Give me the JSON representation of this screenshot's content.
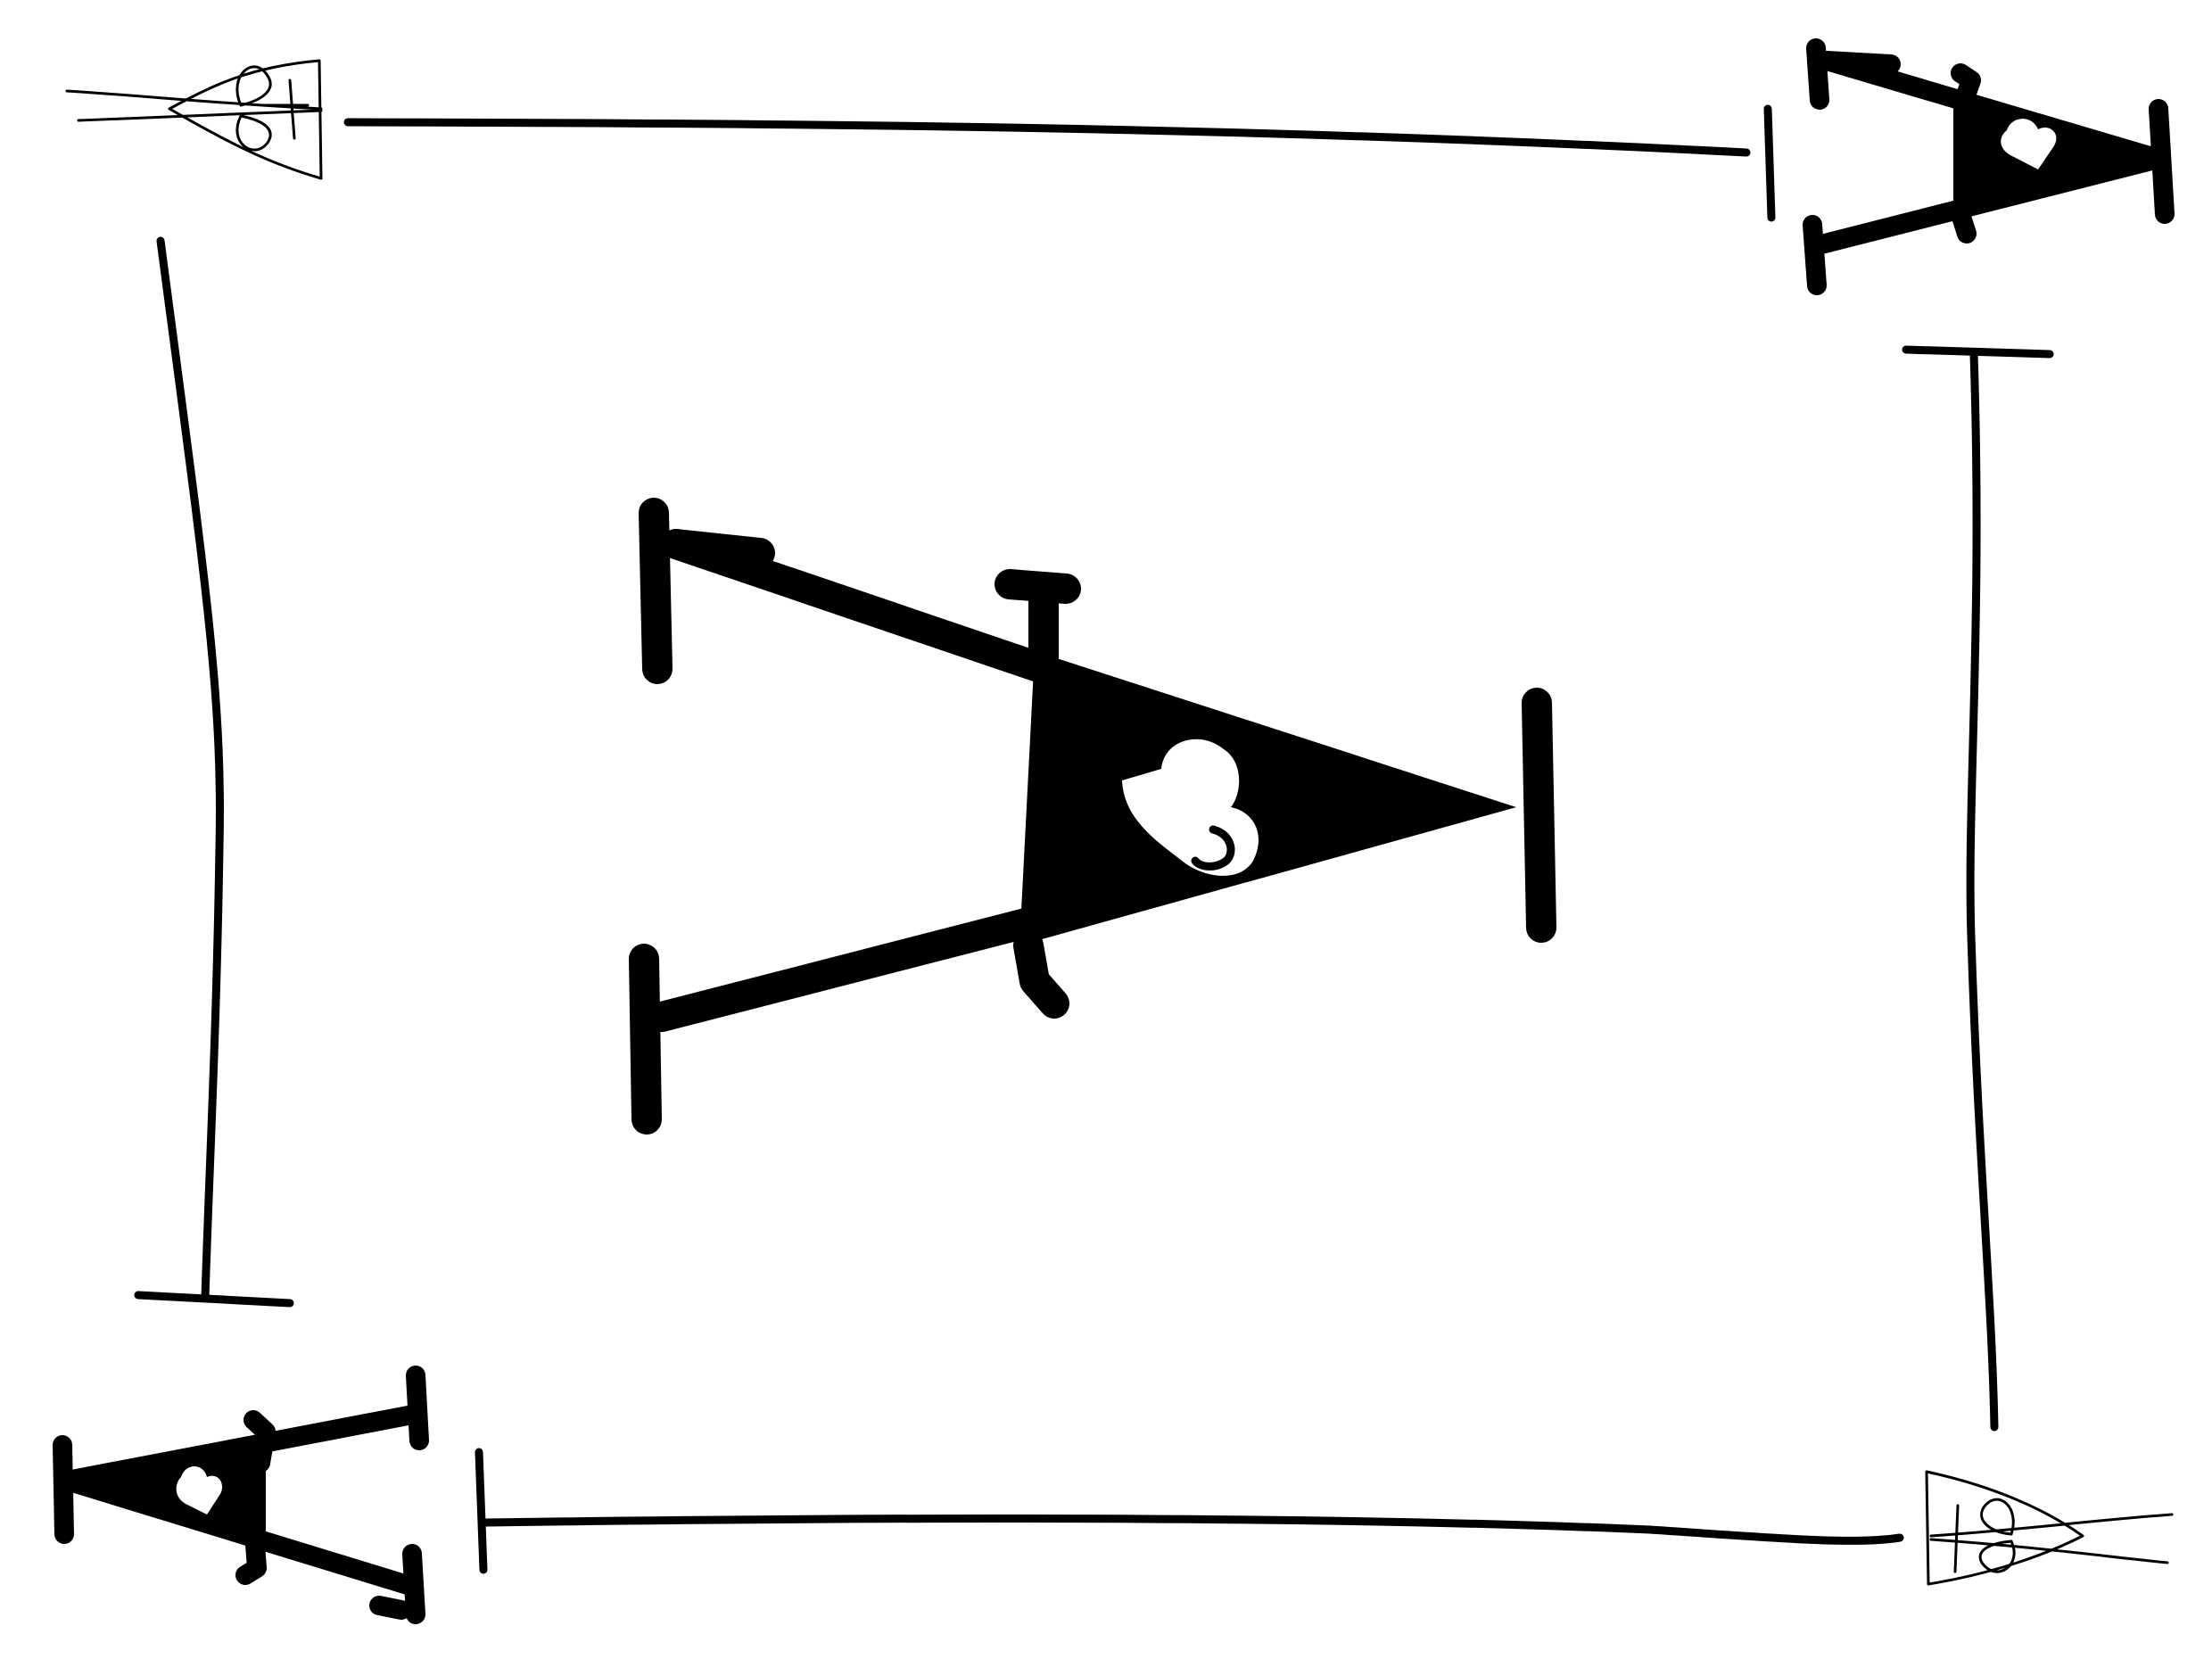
{
  "drawing": {
    "description_visible_text": "",
    "colors": {
      "background": "#ffffff",
      "ink": "#000000",
      "heart": "#ffffff"
    },
    "motifs": {
      "center": "large-letter-a-with-heart",
      "top_left": "outline-spade-arrow-icon",
      "top_right": "small-letter-a-with-heart",
      "bottom_left": "small-letter-a-with-heart",
      "bottom_right": "outline-spade-arrow-icon"
    }
  }
}
